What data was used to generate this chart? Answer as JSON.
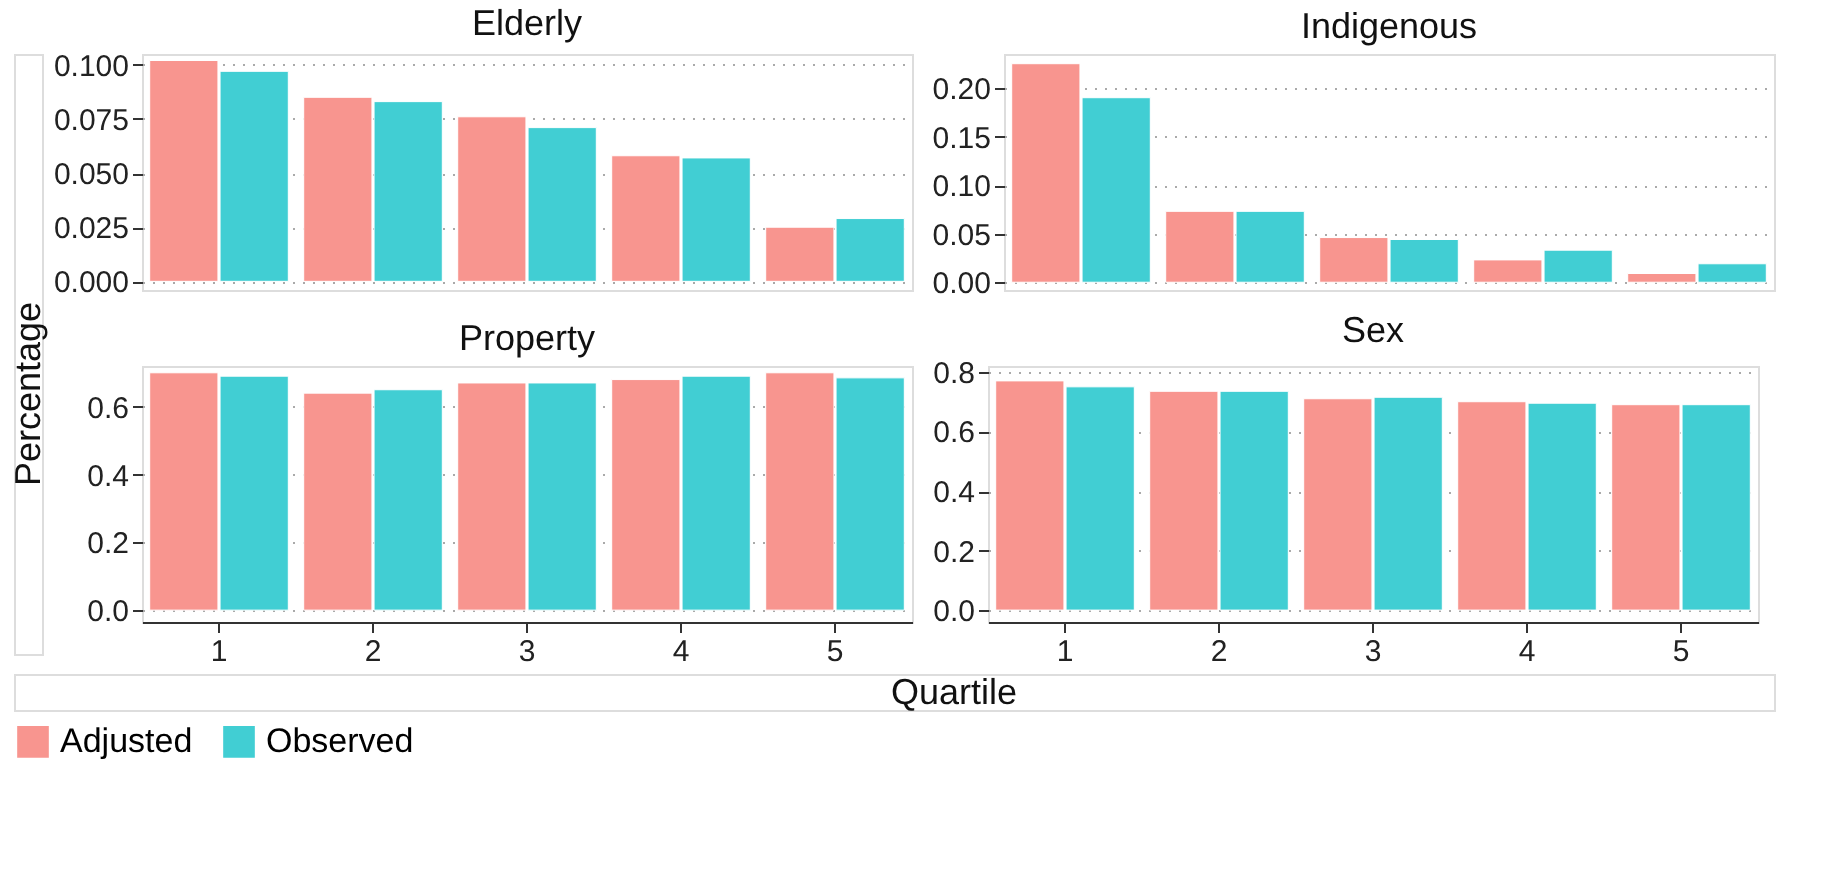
{
  "chart_data": [
    {
      "type": "bar",
      "title": "Elderly",
      "ylabel": "Percentage",
      "categories": [
        "1",
        "2",
        "3",
        "4",
        "5"
      ],
      "series": [
        {
          "name": "Adjusted",
          "color": "#f8958f",
          "values": [
            0.102,
            0.085,
            0.076,
            0.058,
            0.025
          ]
        },
        {
          "name": "Observed",
          "color": "#41ced3",
          "values": [
            0.097,
            0.083,
            0.071,
            0.057,
            0.029
          ]
        }
      ],
      "ylim": [
        -0.004,
        0.105
      ],
      "yticks": [
        {
          "value": 0,
          "label": "0.000"
        },
        {
          "value": 0.025,
          "label": "0.025"
        },
        {
          "value": 0.05,
          "label": "0.050"
        },
        {
          "value": 0.075,
          "label": "0.075"
        },
        {
          "value": 0.1,
          "label": "0.100"
        }
      ],
      "grid": "y",
      "legend": "bottom",
      "tick_labels": "y"
    },
    {
      "type": "bar",
      "title": "Indigenous",
      "categories": [
        "1",
        "2",
        "3",
        "4",
        "5"
      ],
      "series": [
        {
          "name": "Adjusted",
          "color": "#f8958f",
          "values": [
            0.225,
            0.073,
            0.046,
            0.023,
            0.009
          ]
        },
        {
          "name": "Observed",
          "color": "#41ced3",
          "values": [
            0.19,
            0.073,
            0.044,
            0.033,
            0.019
          ]
        }
      ],
      "ylim": [
        -0.008,
        0.235
      ],
      "yticks": [
        {
          "value": 0,
          "label": "0.00"
        },
        {
          "value": 0.05,
          "label": "0.05"
        },
        {
          "value": 0.1,
          "label": "0.10"
        },
        {
          "value": 0.15,
          "label": "0.15"
        },
        {
          "value": 0.2,
          "label": "0.20"
        }
      ],
      "grid": "y",
      "legend": "bottom",
      "tick_labels": "y"
    },
    {
      "type": "bar",
      "title": "Property",
      "xlabel": "Quartile",
      "categories": [
        "1",
        "2",
        "3",
        "4",
        "5"
      ],
      "series": [
        {
          "name": "Adjusted",
          "color": "#f8958f",
          "values": [
            0.7,
            0.64,
            0.67,
            0.68,
            0.7
          ]
        },
        {
          "name": "Observed",
          "color": "#41ced3",
          "values": [
            0.69,
            0.65,
            0.67,
            0.69,
            0.685
          ]
        }
      ],
      "ylim": [
        -0.035,
        0.72
      ],
      "yticks": [
        {
          "value": 0,
          "label": "0.0"
        },
        {
          "value": 0.2,
          "label": "0.2"
        },
        {
          "value": 0.4,
          "label": "0.4"
        },
        {
          "value": 0.6,
          "label": "0.6"
        }
      ],
      "grid": "y",
      "legend": "bottom"
    },
    {
      "type": "bar",
      "title": "Sex",
      "categories": [
        "1",
        "2",
        "3",
        "4",
        "5"
      ],
      "series": [
        {
          "name": "Adjusted",
          "color": "#f8958f",
          "values": [
            0.77,
            0.735,
            0.71,
            0.7,
            0.69
          ]
        },
        {
          "name": "Observed",
          "color": "#41ced3",
          "values": [
            0.75,
            0.735,
            0.715,
            0.695,
            0.69
          ]
        }
      ],
      "ylim": [
        -0.04,
        0.82
      ],
      "yticks": [
        {
          "value": 0,
          "label": "0.0"
        },
        {
          "value": 0.2,
          "label": "0.2"
        },
        {
          "value": 0.4,
          "label": "0.4"
        },
        {
          "value": 0.6,
          "label": "0.6"
        },
        {
          "value": 0.8,
          "label": "0.8"
        }
      ],
      "grid": "y",
      "legend": "bottom"
    }
  ]
}
